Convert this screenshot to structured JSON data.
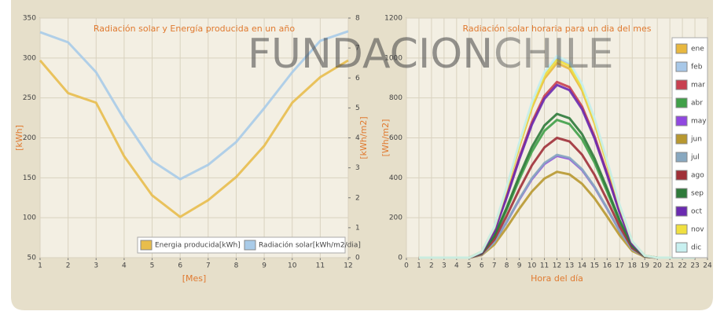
{
  "watermark": [
    "FUNDACION",
    "CHILE"
  ],
  "chart_data": [
    {
      "type": "line",
      "title": "Radiación solar y Energía producida en un año",
      "xlabel": "[Mes]",
      "ylabel": "[kWh]",
      "y2label": "[kWh/m2]",
      "x": [
        1,
        2,
        3,
        4,
        5,
        6,
        7,
        8,
        9,
        10,
        11,
        12
      ],
      "xlim": [
        1,
        12
      ],
      "xticks": [
        1,
        2,
        3,
        4,
        5,
        6,
        7,
        8,
        9,
        10,
        11,
        12
      ],
      "ylim": [
        50,
        350
      ],
      "yticks": [
        50,
        100,
        150,
        200,
        250,
        300,
        350
      ],
      "y2lim": [
        0,
        8
      ],
      "y2ticks": [
        0,
        1,
        2,
        3,
        4,
        5,
        6,
        7,
        8
      ],
      "grid": true,
      "legend": "lower right",
      "series": [
        {
          "name": "Energia producida[kWh]",
          "color": "#e8bd4c",
          "values": [
            297,
            256,
            244,
            177,
            128,
            101,
            122,
            151,
            190,
            244,
            276,
            297
          ]
        },
        {
          "name": "Radiación solar[kWh/m2/dia]",
          "color": "#a9cbe8",
          "axis": "y2",
          "values": [
            7.53,
            7.19,
            6.19,
            4.62,
            3.23,
            2.62,
            3.1,
            3.86,
            4.99,
            6.19,
            7.24,
            7.56
          ]
        }
      ]
    },
    {
      "type": "line",
      "title": "Radiación solar horaria para un dia del mes",
      "xlabel": "Hora del día",
      "ylabel": "[Wh/m2]",
      "x": [
        1,
        2,
        3,
        4,
        5,
        6,
        7,
        8,
        9,
        10,
        11,
        12,
        13,
        14,
        15,
        16,
        17,
        18,
        19,
        20,
        21,
        22,
        23
      ],
      "xlim": [
        0,
        24
      ],
      "xticks": [
        0,
        1,
        2,
        3,
        4,
        5,
        6,
        7,
        8,
        9,
        10,
        11,
        12,
        13,
        14,
        15,
        16,
        17,
        18,
        19,
        20,
        21,
        22,
        23,
        24
      ],
      "ylim": [
        0,
        1200
      ],
      "yticks": [
        0,
        200,
        400,
        600,
        800,
        1000,
        1200
      ],
      "grid": true,
      "legend": "right",
      "series": [
        {
          "name": "ene",
          "color": "#e8b840",
          "values": [
            0,
            0,
            0,
            0,
            0,
            29,
            146,
            341,
            556,
            751,
            897,
            975,
            946,
            839,
            673,
            468,
            254,
            78,
            10,
            0,
            0,
            0,
            0
          ]
        },
        {
          "name": "feb",
          "color": "#a8c8e8",
          "values": [
            0,
            0,
            0,
            0,
            0,
            30,
            150,
            350,
            570,
            770,
            920,
            1000,
            970,
            860,
            690,
            480,
            260,
            80,
            10,
            0,
            0,
            0,
            0
          ]
        },
        {
          "name": "mar",
          "color": "#c84050",
          "values": [
            0,
            0,
            0,
            0,
            0,
            26,
            132,
            308,
            502,
            678,
            810,
            880,
            854,
            757,
            607,
            422,
            229,
            70,
            9,
            0,
            0,
            0,
            0
          ]
        },
        {
          "name": "abr",
          "color": "#40a048",
          "values": [
            0,
            0,
            0,
            0,
            0,
            21,
            104,
            242,
            393,
            531,
            635,
            690,
            669,
            593,
            476,
            331,
            179,
            55,
            7,
            0,
            0,
            0,
            0
          ]
        },
        {
          "name": "may",
          "color": "#9048e0",
          "values": [
            0,
            0,
            0,
            0,
            0,
            15,
            77,
            179,
            291,
            393,
            469,
            510,
            495,
            439,
            352,
            245,
            133,
            41,
            5,
            0,
            0,
            0,
            0
          ]
        },
        {
          "name": "jun",
          "color": "#b89830",
          "values": [
            0,
            0,
            0,
            0,
            0,
            13,
            65,
            151,
            245,
            331,
            396,
            430,
            417,
            370,
            297,
            206,
            112,
            34,
            4,
            0,
            0,
            0,
            0
          ]
        },
        {
          "name": "jul",
          "color": "#88a8c0",
          "values": [
            0,
            0,
            0,
            0,
            0,
            15,
            77,
            180,
            294,
            397,
            474,
            515,
            500,
            443,
            355,
            247,
            134,
            41,
            5,
            0,
            0,
            0,
            0
          ]
        },
        {
          "name": "ago",
          "color": "#a03038",
          "values": [
            0,
            0,
            0,
            0,
            0,
            18,
            90,
            210,
            342,
            462,
            552,
            600,
            582,
            516,
            414,
            288,
            156,
            48,
            6,
            0,
            0,
            0,
            0
          ]
        },
        {
          "name": "sep",
          "color": "#2e7a3a",
          "values": [
            0,
            0,
            0,
            0,
            0,
            22,
            108,
            252,
            410,
            554,
            662,
            720,
            698,
            619,
            497,
            346,
            187,
            58,
            7,
            0,
            0,
            0,
            0
          ]
        },
        {
          "name": "oct",
          "color": "#6a2ab0",
          "values": [
            0,
            0,
            0,
            0,
            0,
            26,
            130,
            303,
            493,
            666,
            796,
            865,
            839,
            744,
            597,
            415,
            225,
            69,
            9,
            0,
            0,
            0,
            0
          ]
        },
        {
          "name": "nov",
          "color": "#f0e040",
          "values": [
            0,
            0,
            0,
            0,
            0,
            30,
            149,
            347,
            564,
            762,
            911,
            990,
            960,
            851,
            683,
            475,
            257,
            79,
            10,
            0,
            0,
            0,
            0
          ]
        },
        {
          "name": "dic",
          "color": "#c8f0f0",
          "values": [
            0,
            0,
            0,
            0,
            0,
            30,
            152,
            354,
            576,
            778,
            929,
            1010,
            980,
            869,
            697,
            485,
            263,
            81,
            10,
            0,
            0,
            0,
            0
          ]
        }
      ]
    }
  ]
}
